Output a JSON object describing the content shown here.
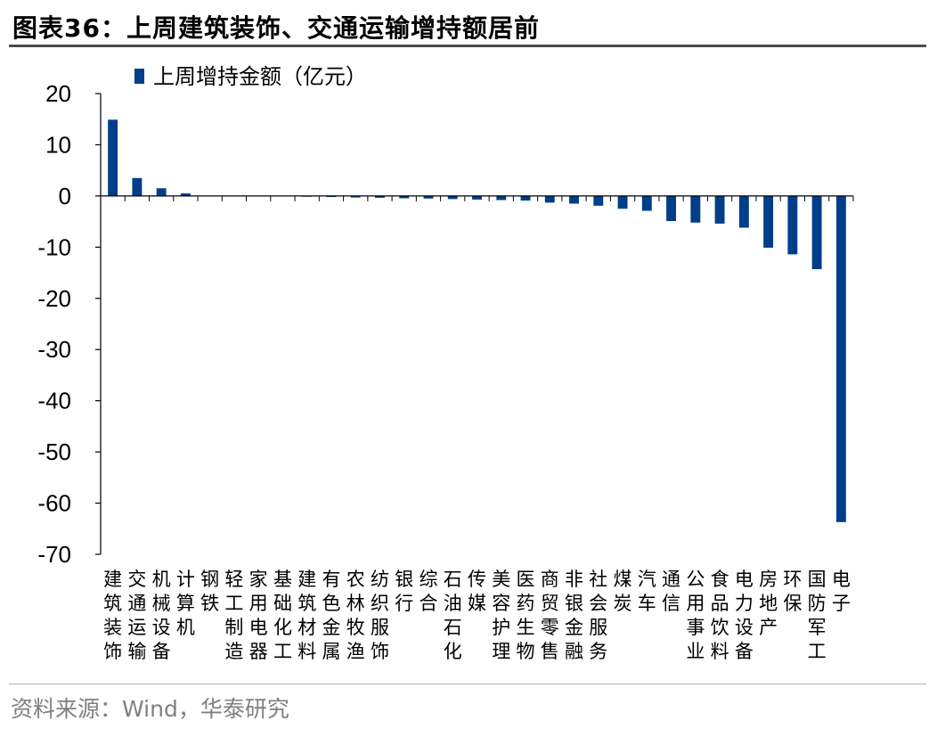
{
  "figure": {
    "title": "图表36：上周建筑装饰、交通运输增持额居前",
    "source": "资料来源：Wind，华泰研究"
  },
  "colors": {
    "bar": "#003E8A",
    "axis": "#000000"
  },
  "chart_data": {
    "type": "bar",
    "title": "",
    "xlabel": "",
    "ylabel": "",
    "ylim": [
      -70,
      20
    ],
    "yticks": [
      20,
      10,
      0,
      -10,
      -20,
      -30,
      -40,
      -50,
      -60,
      -70
    ],
    "legend": {
      "placement": "top-left",
      "entries": [
        "上周增持金额（亿元）"
      ]
    },
    "grid": false,
    "categories": [
      "建筑装饰",
      "交通运输",
      "机械设备",
      "计算机",
      "钢铁",
      "轻工制造",
      "家用电器",
      "基础化工",
      "建筑材料",
      "有色金属",
      "农林牧渔",
      "纺织服饰",
      "银行",
      "综合",
      "石油石化",
      "传媒",
      "美容护理",
      "医药生物",
      "商贸零售",
      "非银金融",
      "社会服务",
      "煤炭",
      "汽车",
      "通信",
      "公用事业",
      "食品饮料",
      "电力设备",
      "房地产",
      "环保",
      "国防军工",
      "电子"
    ],
    "series": [
      {
        "name": "上周增持金额（亿元）",
        "values": [
          14.9,
          3.5,
          1.5,
          0.5,
          0.05,
          -0.05,
          -0.1,
          -0.1,
          -0.15,
          -0.2,
          -0.3,
          -0.35,
          -0.45,
          -0.5,
          -0.6,
          -0.7,
          -0.8,
          -0.9,
          -1.3,
          -1.5,
          -1.9,
          -2.5,
          -2.9,
          -4.9,
          -5.2,
          -5.4,
          -6.2,
          -10.1,
          -11.4,
          -14.3,
          -63.7
        ]
      }
    ]
  }
}
